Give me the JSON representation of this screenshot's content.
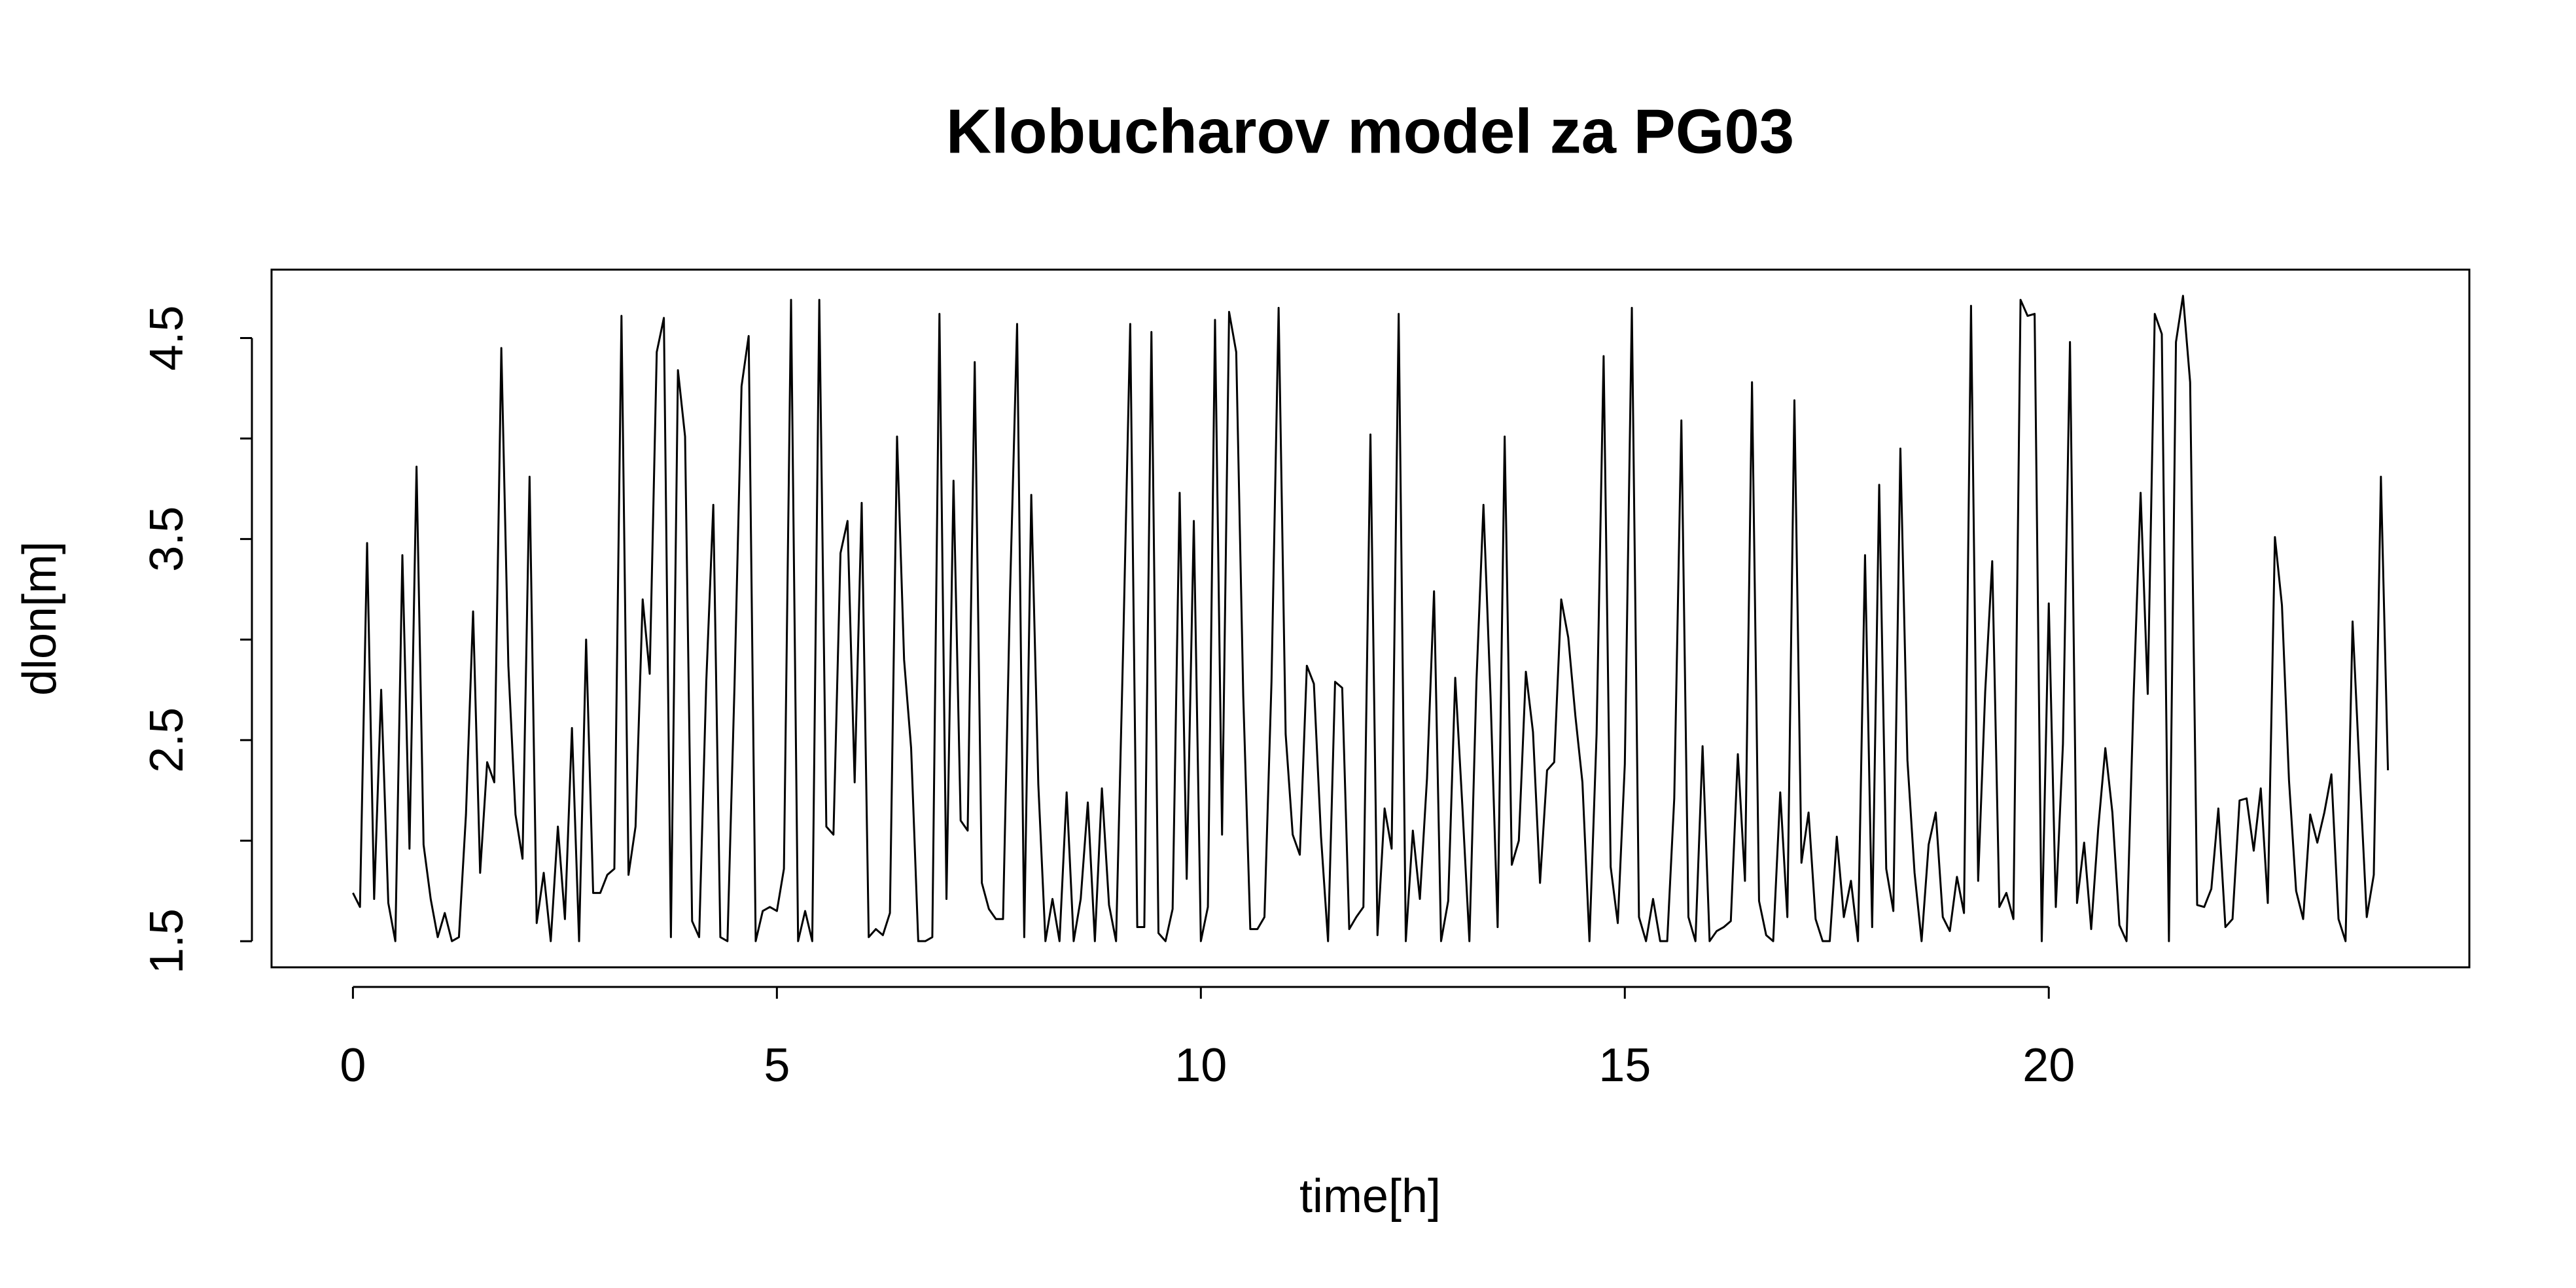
{
  "chart_data": {
    "type": "line",
    "title": "Klobucharov model za PG03",
    "x_label": "time[h]",
    "y_label": "dlon[m]",
    "color": "#000000",
    "grid": false,
    "xlim": [
      -0.96,
      24.96
    ],
    "xticks": [
      0,
      5,
      10,
      15,
      20
    ],
    "ylim": [
      1.37,
      4.84
    ],
    "yticks": [
      1.5,
      2.5,
      3.5,
      4.5
    ],
    "yminor_ticks": [
      2,
      3,
      4
    ],
    "x": [
      0,
      0.083,
      0.167,
      0.25,
      0.333,
      0.417,
      0.5,
      0.583,
      0.667,
      0.75,
      0.833,
      0.917,
      1,
      1.083,
      1.167,
      1.25,
      1.333,
      1.417,
      1.5,
      1.583,
      1.667,
      1.75,
      1.833,
      1.917,
      2,
      2.083,
      2.167,
      2.25,
      2.333,
      2.417,
      2.5,
      2.583,
      2.667,
      2.75,
      2.833,
      2.917,
      3,
      3.083,
      3.167,
      3.25,
      3.333,
      3.417,
      3.5,
      3.583,
      3.667,
      3.75,
      3.833,
      3.917,
      4,
      4.083,
      4.167,
      4.25,
      4.333,
      4.417,
      4.5,
      4.583,
      4.667,
      4.75,
      4.833,
      4.917,
      5,
      5.083,
      5.167,
      5.25,
      5.333,
      5.417,
      5.5,
      5.583,
      5.667,
      5.75,
      5.833,
      5.917,
      6,
      6.083,
      6.167,
      6.25,
      6.333,
      6.417,
      6.5,
      6.583,
      6.667,
      6.75,
      6.833,
      6.917,
      7,
      7.083,
      7.167,
      7.25,
      7.333,
      7.417,
      7.5,
      7.583,
      7.667,
      7.75,
      7.833,
      7.917,
      8,
      8.083,
      8.167,
      8.25,
      8.333,
      8.417,
      8.5,
      8.583,
      8.667,
      8.75,
      8.833,
      8.917,
      9,
      9.083,
      9.167,
      9.25,
      9.333,
      9.417,
      9.5,
      9.583,
      9.667,
      9.75,
      9.833,
      9.917,
      10,
      10.083,
      10.167,
      10.25,
      10.333,
      10.417,
      10.5,
      10.583,
      10.667,
      10.75,
      10.833,
      10.917,
      11,
      11.083,
      11.167,
      11.25,
      11.333,
      11.417,
      11.5,
      11.583,
      11.667,
      11.75,
      11.833,
      11.917,
      12,
      12.083,
      12.167,
      12.25,
      12.333,
      12.417,
      12.5,
      12.583,
      12.667,
      12.75,
      12.833,
      12.917,
      13,
      13.083,
      13.167,
      13.25,
      13.333,
      13.417,
      13.5,
      13.583,
      13.667,
      13.75,
      13.833,
      13.917,
      14,
      14.083,
      14.167,
      14.25,
      14.333,
      14.417,
      14.5,
      14.583,
      14.667,
      14.75,
      14.833,
      14.917,
      15,
      15.083,
      15.167,
      15.25,
      15.333,
      15.417,
      15.5,
      15.583,
      15.667,
      15.75,
      15.833,
      15.917,
      16,
      16.083,
      16.167,
      16.25,
      16.333,
      16.417,
      16.5,
      16.583,
      16.667,
      16.75,
      16.833,
      16.917,
      17,
      17.083,
      17.167,
      17.25,
      17.333,
      17.417,
      17.5,
      17.583,
      17.667,
      17.75,
      17.833,
      17.917,
      18,
      18.083,
      18.167,
      18.25,
      18.333,
      18.417,
      18.5,
      18.583,
      18.667,
      18.75,
      18.833,
      18.917,
      19,
      19.083,
      19.167,
      19.25,
      19.333,
      19.417,
      19.5,
      19.583,
      19.667,
      19.75,
      19.833,
      19.917,
      20,
      20.083,
      20.167,
      20.25,
      20.333,
      20.417,
      20.5,
      20.583,
      20.667,
      20.75,
      20.833,
      20.917,
      21,
      21.083,
      21.167,
      21.25,
      21.333,
      21.417,
      21.5,
      21.583,
      21.667,
      21.75,
      21.833,
      21.917,
      22,
      22.083,
      22.167,
      22.25,
      22.333,
      22.417,
      22.5,
      22.583,
      22.667,
      22.75,
      22.833,
      22.917,
      23,
      23.083,
      23.167,
      23.25,
      23.333,
      23.417,
      23.5,
      23.583,
      23.667,
      23.75,
      23.833,
      23.917,
      24
    ],
    "values": [
      1.74,
      1.67,
      3.48,
      1.71,
      2.75,
      1.69,
      1.5,
      3.42,
      1.96,
      3.86,
      1.98,
      1.71,
      1.52,
      1.64,
      1.5,
      1.52,
      2.13,
      3.14,
      1.84,
      2.39,
      2.29,
      4.45,
      2.87,
      2.13,
      1.91,
      3.81,
      1.59,
      1.84,
      1.5,
      2.07,
      1.61,
      2.56,
      1.5,
      3.0,
      1.74,
      1.74,
      1.83,
      1.86,
      4.61,
      1.83,
      2.07,
      3.2,
      2.83,
      4.43,
      4.6,
      1.52,
      4.34,
      4.01,
      1.6,
      1.52,
      2.79,
      3.67,
      1.52,
      1.5,
      2.77,
      4.26,
      4.51,
      1.5,
      1.65,
      1.67,
      1.65,
      1.86,
      4.69,
      1.5,
      1.65,
      1.5,
      4.69,
      2.07,
      2.03,
      3.43,
      3.59,
      2.29,
      3.68,
      1.52,
      1.56,
      1.53,
      1.64,
      4.01,
      2.9,
      2.46,
      1.5,
      1.5,
      1.52,
      4.62,
      1.71,
      3.79,
      2.1,
      2.05,
      4.38,
      1.79,
      1.66,
      1.61,
      1.61,
      3.24,
      4.57,
      1.52,
      3.72,
      2.28,
      1.5,
      1.71,
      1.5,
      2.24,
      1.5,
      1.71,
      2.19,
      1.5,
      2.26,
      1.68,
      1.5,
      2.95,
      4.57,
      1.57,
      1.57,
      4.53,
      1.54,
      1.5,
      1.66,
      3.73,
      1.81,
      3.59,
      1.5,
      1.67,
      4.59,
      2.03,
      4.63,
      4.43,
      2.72,
      1.56,
      1.56,
      1.62,
      2.79,
      4.65,
      2.53,
      2.03,
      1.93,
      2.87,
      2.78,
      2.02,
      1.5,
      2.79,
      2.76,
      1.56,
      1.62,
      1.67,
      4.02,
      1.53,
      2.16,
      1.96,
      4.62,
      1.5,
      2.05,
      1.71,
      2.31,
      3.24,
      1.5,
      1.7,
      2.81,
      2.18,
      1.5,
      2.79,
      3.67,
      2.71,
      1.57,
      4.01,
      1.88,
      2.0,
      2.84,
      2.54,
      1.79,
      2.35,
      2.39,
      3.2,
      3.01,
      2.62,
      2.29,
      1.5,
      2.53,
      4.41,
      1.87,
      1.59,
      2.38,
      4.65,
      1.62,
      1.5,
      1.71,
      1.5,
      1.5,
      2.21,
      4.09,
      1.62,
      1.5,
      2.47,
      1.5,
      1.55,
      1.57,
      1.6,
      2.43,
      1.8,
      4.28,
      1.7,
      1.53,
      1.5,
      2.24,
      1.62,
      4.19,
      1.89,
      2.14,
      1.61,
      1.5,
      1.5,
      2.02,
      1.62,
      1.8,
      1.5,
      3.42,
      1.57,
      3.77,
      1.86,
      1.65,
      3.95,
      2.4,
      1.84,
      1.5,
      1.98,
      2.14,
      1.62,
      1.55,
      1.82,
      1.64,
      4.66,
      1.8,
      2.74,
      3.39,
      1.67,
      1.74,
      1.61,
      4.69,
      4.61,
      4.62,
      1.5,
      3.18,
      1.67,
      2.48,
      4.48,
      1.69,
      1.99,
      1.56,
      2.06,
      2.46,
      2.14,
      1.58,
      1.5,
      2.71,
      3.73,
      2.73,
      4.62,
      4.52,
      1.5,
      4.48,
      4.71,
      4.28,
      1.68,
      1.67,
      1.76,
      2.16,
      1.57,
      1.61,
      2.2,
      2.21,
      1.95,
      2.26,
      1.69,
      3.51,
      3.17,
      2.3,
      1.75,
      1.61,
      2.13,
      1.99,
      2.14,
      2.33,
      1.61,
      1.5,
      3.09,
      2.33,
      1.62,
      1.83,
      3.81,
      2.35
    ]
  }
}
